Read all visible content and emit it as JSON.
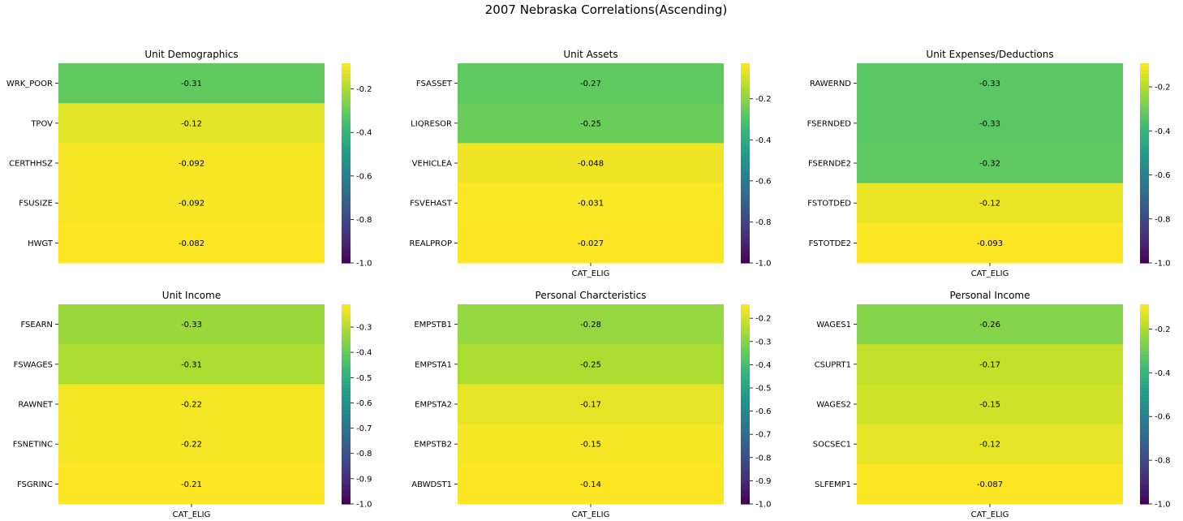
{
  "suptitle": "2007 Nebraska Correlations(Ascending)",
  "chart_data": [
    {
      "type": "heatmap",
      "title": "Unit Demographics",
      "rows": [
        "WRK_POOR",
        "TPOV",
        "CERTHHSZ",
        "FSUSIZE",
        "HWGT"
      ],
      "columns": [
        ""
      ],
      "values": [
        -0.31,
        -0.12,
        -0.092,
        -0.092,
        -0.082
      ],
      "labels": [
        "-0.31",
        "-0.12",
        "-0.092",
        "-0.092",
        "-0.082"
      ],
      "colorbar": {
        "vmin": -1.0,
        "vmax": -0.082,
        "ticks": [
          "-1.0",
          "-0.8",
          "-0.6",
          "-0.4",
          "-0.2"
        ],
        "tick_values": [
          -1.0,
          -0.8,
          -0.6,
          -0.4,
          -0.2
        ]
      }
    },
    {
      "type": "heatmap",
      "title": "Unit Assets",
      "rows": [
        "FSASSET",
        "LIQRESOR",
        "VEHICLEA",
        "FSVEHAST",
        "REALPROP"
      ],
      "columns": [
        "CAT_ELIG"
      ],
      "values": [
        -0.27,
        -0.25,
        -0.048,
        -0.031,
        -0.027
      ],
      "labels": [
        "-0.27",
        "-0.25",
        "-0.048",
        "-0.031",
        "-0.027"
      ],
      "colorbar": {
        "vmin": -1.0,
        "vmax": -0.027,
        "ticks": [
          "-1.0",
          "-0.8",
          "-0.6",
          "-0.4",
          "-0.2"
        ],
        "tick_values": [
          -1.0,
          -0.8,
          -0.6,
          -0.4,
          -0.2
        ]
      }
    },
    {
      "type": "heatmap",
      "title": "Unit Expenses/Deductions",
      "rows": [
        "RAWERND",
        "FSERNDED",
        "FSERNDE2",
        "FSTOTDED",
        "FSTOTDE2"
      ],
      "columns": [
        "CAT_ELIG"
      ],
      "values": [
        -0.33,
        -0.33,
        -0.32,
        -0.12,
        -0.093
      ],
      "labels": [
        "-0.33",
        "-0.33",
        "-0.32",
        "-0.12",
        "-0.093"
      ],
      "colorbar": {
        "vmin": -1.0,
        "vmax": -0.093,
        "ticks": [
          "-1.0",
          "-0.8",
          "-0.6",
          "-0.4",
          "-0.2"
        ],
        "tick_values": [
          -1.0,
          -0.8,
          -0.6,
          -0.4,
          -0.2
        ]
      }
    },
    {
      "type": "heatmap",
      "title": "Unit Income",
      "rows": [
        "FSEARN",
        "FSWAGES",
        "RAWNET",
        "FSNETINC",
        "FSGRINC"
      ],
      "columns": [
        "CAT_ELIG"
      ],
      "values": [
        -0.33,
        -0.31,
        -0.22,
        -0.22,
        -0.21
      ],
      "labels": [
        "-0.33",
        "-0.31",
        "-0.22",
        "-0.22",
        "-0.21"
      ],
      "colorbar": {
        "vmin": -1.0,
        "vmax": -0.21,
        "ticks": [
          "-1.0",
          "-0.9",
          "-0.8",
          "-0.7",
          "-0.6",
          "-0.5",
          "-0.4",
          "-0.3"
        ],
        "tick_values": [
          -1.0,
          -0.9,
          -0.8,
          -0.7,
          -0.6,
          -0.5,
          -0.4,
          -0.3
        ]
      }
    },
    {
      "type": "heatmap",
      "title": "Personal Charcteristics",
      "rows": [
        "EMPSTB1",
        "EMPSTA1",
        "EMPSTA2",
        "EMPSTB2",
        "ABWDST1"
      ],
      "columns": [
        "CAT_ELIG"
      ],
      "values": [
        -0.28,
        -0.25,
        -0.17,
        -0.15,
        -0.14
      ],
      "labels": [
        "-0.28",
        "-0.25",
        "-0.17",
        "-0.15",
        "-0.14"
      ],
      "colorbar": {
        "vmin": -1.0,
        "vmax": -0.14,
        "ticks": [
          "-1.0",
          "-0.9",
          "-0.8",
          "-0.7",
          "-0.6",
          "-0.5",
          "-0.4",
          "-0.3",
          "-0.2"
        ],
        "tick_values": [
          -1.0,
          -0.9,
          -0.8,
          -0.7,
          -0.6,
          -0.5,
          -0.4,
          -0.3,
          -0.2
        ]
      }
    },
    {
      "type": "heatmap",
      "title": "Personal Income",
      "rows": [
        "WAGES1",
        "CSUPRT1",
        "WAGES2",
        "SOCSEC1",
        "SLFEMP1"
      ],
      "columns": [
        "CAT_ELIG"
      ],
      "values": [
        -0.26,
        -0.17,
        -0.15,
        -0.12,
        -0.087
      ],
      "labels": [
        "-0.26",
        "-0.17",
        "-0.15",
        "-0.12",
        "-0.087"
      ],
      "colorbar": {
        "vmin": -1.0,
        "vmax": -0.087,
        "ticks": [
          "-1.0",
          "-0.8",
          "-0.6",
          "-0.4",
          "-0.2"
        ],
        "tick_values": [
          -1.0,
          -0.8,
          -0.6,
          -0.4,
          -0.2
        ]
      }
    }
  ]
}
